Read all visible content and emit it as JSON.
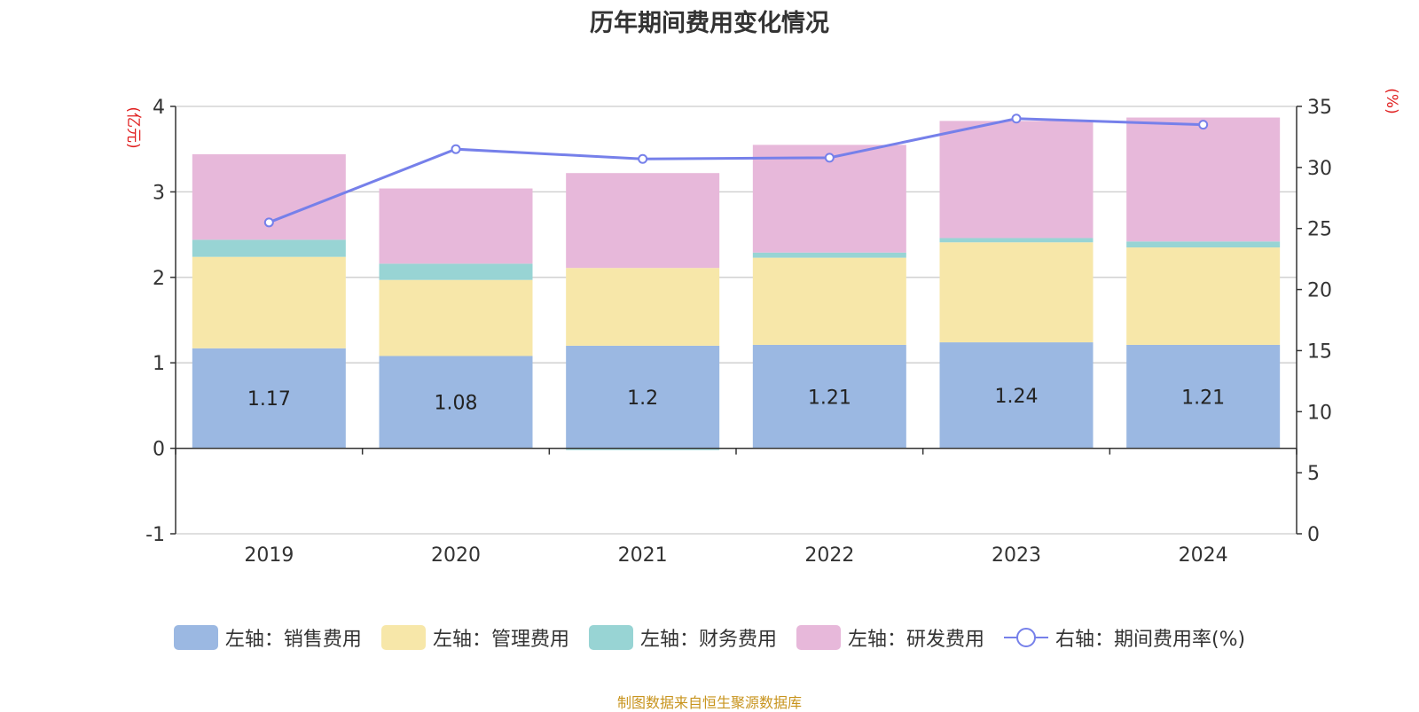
{
  "chart_data": {
    "type": "bar",
    "title": "历年期间费用变化情况",
    "categories": [
      "2019",
      "2020",
      "2021",
      "2022",
      "2023",
      "2024"
    ],
    "y_left": {
      "label": "(亿元)",
      "ylim": [
        -1,
        4
      ],
      "ticks": [
        "-1",
        "0",
        "1",
        "2",
        "3",
        "4"
      ]
    },
    "y_right": {
      "label": "(%)",
      "ylim": [
        0,
        35
      ],
      "ticks": [
        "0",
        "5",
        "10",
        "15",
        "20",
        "25",
        "30",
        "35"
      ]
    },
    "series": [
      {
        "name": "左轴：销售费用",
        "kind": "bar",
        "axis": "left",
        "color": "#9bb8e2",
        "values": [
          1.17,
          1.08,
          1.2,
          1.21,
          1.24,
          1.21
        ],
        "labels": [
          "1.17",
          "1.08",
          "1.2",
          "1.21",
          "1.24",
          "1.21"
        ]
      },
      {
        "name": "左轴：管理费用",
        "kind": "bar",
        "axis": "left",
        "color": "#f7e7a9",
        "values": [
          1.07,
          0.89,
          0.91,
          1.02,
          1.17,
          1.14
        ]
      },
      {
        "name": "左轴：财务费用",
        "kind": "bar",
        "axis": "left",
        "color": "#98d4d4",
        "values": [
          0.2,
          0.19,
          -0.02,
          0.06,
          0.05,
          0.07
        ]
      },
      {
        "name": "左轴：研发费用",
        "kind": "bar",
        "axis": "left",
        "color": "#e7b8da",
        "values": [
          1.0,
          0.88,
          1.11,
          1.26,
          1.37,
          1.45
        ]
      },
      {
        "name": "右轴：期间费用率(%)",
        "kind": "line",
        "axis": "right",
        "color": "#7680ea",
        "values": [
          25.5,
          31.5,
          30.7,
          30.8,
          34.0,
          33.5
        ]
      }
    ],
    "legend_position": "bottom",
    "grid": true
  },
  "source": "制图数据来自恒生聚源数据库"
}
